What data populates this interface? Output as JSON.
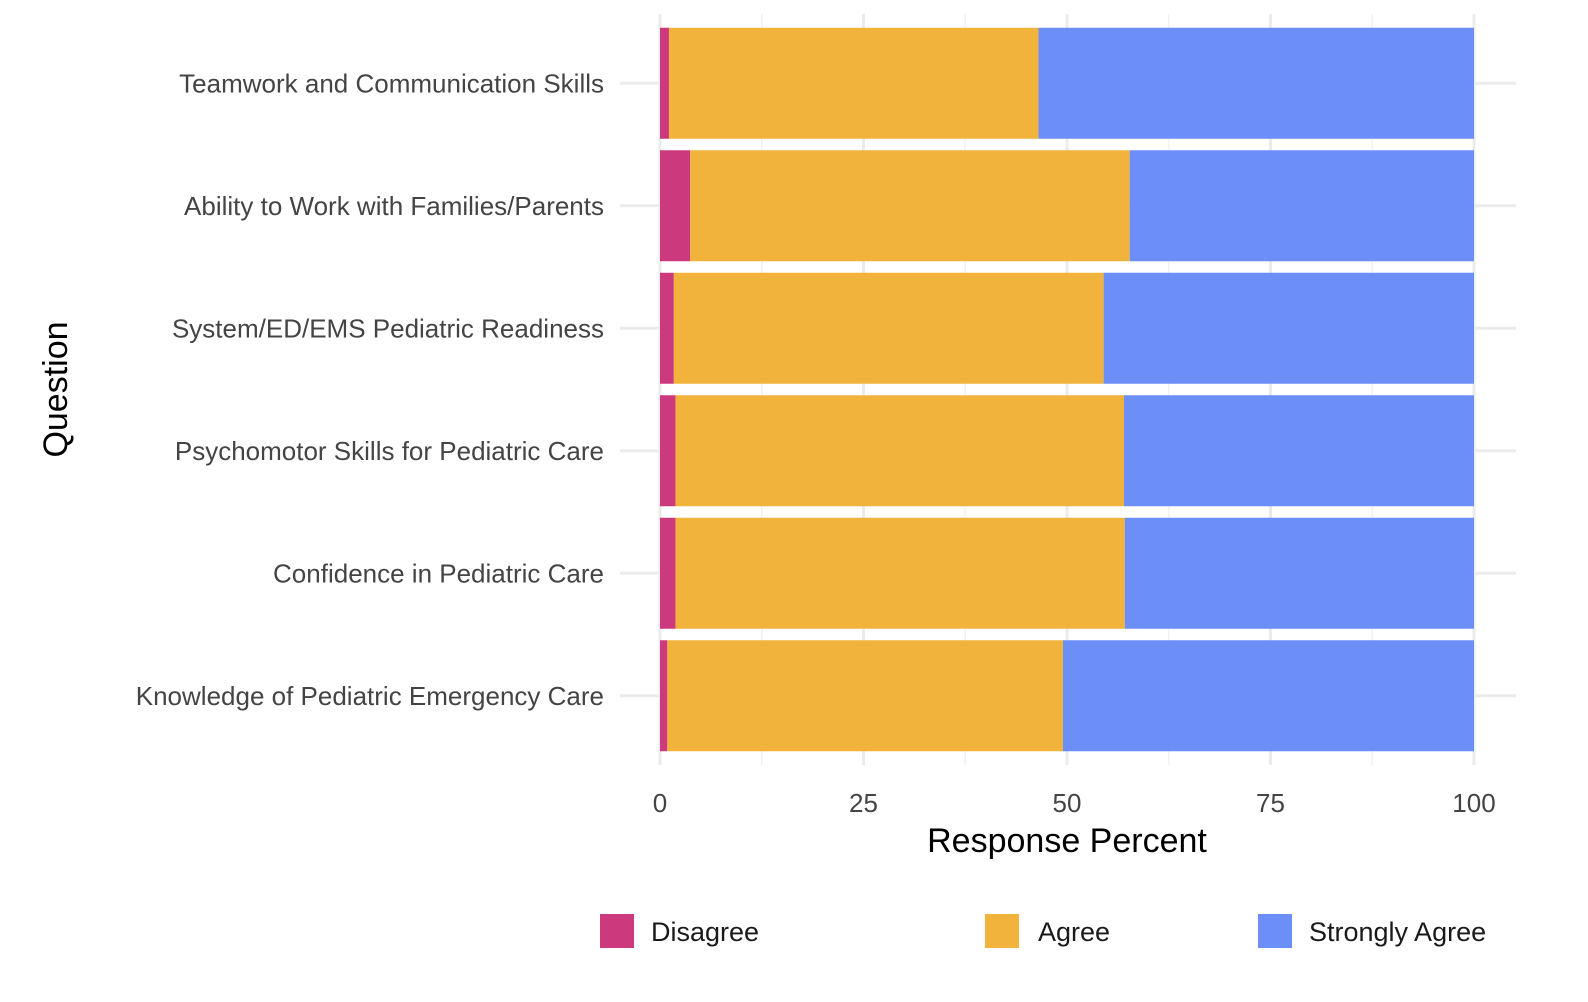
{
  "chart_data": {
    "type": "bar",
    "orientation": "horizontal",
    "stacked": true,
    "categories": [
      "Knowledge of Pediatric Emergency Care",
      "Confidence in Pediatric Care",
      "Psychomotor Skills for Pediatric Care",
      "System/ED/EMS Pediatric Readiness",
      "Ability to Work with Families/Parents",
      "Teamwork and Communication Skills"
    ],
    "series": [
      {
        "name": "Disagree",
        "color": "#CC3A7D",
        "values": [
          0.9,
          1.9,
          1.9,
          1.7,
          3.7,
          1.1
        ]
      },
      {
        "name": "Agree",
        "color": "#F2B33D",
        "values": [
          48.6,
          55.2,
          55.1,
          52.8,
          54.0,
          45.4
        ]
      },
      {
        "name": "Strongly Agree",
        "color": "#6C8EF7",
        "values": [
          50.5,
          42.9,
          43.0,
          45.5,
          42.3,
          53.5
        ]
      }
    ],
    "xlabel": "Response Percent",
    "ylabel": "Question",
    "xlim": [
      0,
      100
    ],
    "xticks": [
      "0",
      "25",
      "50",
      "75",
      "100"
    ],
    "grid": true,
    "legend_position": "bottom"
  }
}
